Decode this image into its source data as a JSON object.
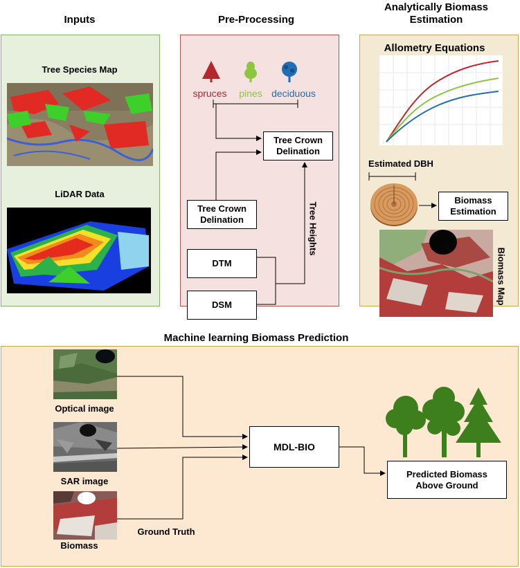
{
  "sections": {
    "inputs": "Inputs",
    "preprocessing": "Pre-Processing",
    "analytical": "Analytically Biomass\nEstimation",
    "ml": "Machine learning Biomass Prediction"
  },
  "inputs": {
    "species_map_label": "Tree Species Map",
    "lidar_label": "LiDAR Data"
  },
  "preprocessing": {
    "species": [
      {
        "name": "spruces",
        "color": "#b5272d"
      },
      {
        "name": "pines",
        "color": "#8cc63f"
      },
      {
        "name": "deciduous",
        "color": "#1f6db5"
      }
    ],
    "crown_top": "Tree Crown\nDelination",
    "crown_left": "Tree Crown\nDelination",
    "dtm": "DTM",
    "dsm": "DSM",
    "tree_heights": "Tree Heights"
  },
  "analytical": {
    "allometry_title": "Allometry Equations",
    "curve_colors": [
      "#c0272d",
      "#8cc63f",
      "#1f6db5"
    ],
    "dbh_label": "Estimated DBH",
    "biomass_estimation": "Biomass\nEstimation",
    "biomass_map": "Biomass Map"
  },
  "ml": {
    "optical_label": "Optical image",
    "sar_label": "SAR image",
    "biomass_label": "Biomass",
    "ground_truth": "Ground Truth",
    "model": "MDL-BIO",
    "output": "Predicted Biomass\nAbove Ground",
    "tree_color": "#3d7f1c"
  },
  "colors": {
    "inputs_bg": "#e6f0dd",
    "inputs_border": "#82b366",
    "pre_bg": "#f5e1e0",
    "pre_border": "#b85450",
    "ana_bg": "#f4ead3",
    "ana_border": "#c9a64f",
    "ml_bg": "#fde8d2",
    "ml_border": "#c9a64f"
  }
}
